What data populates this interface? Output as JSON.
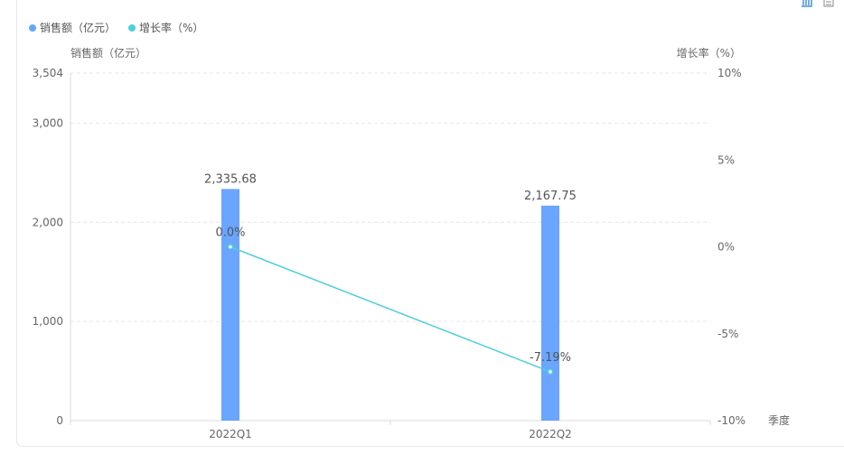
{
  "toolbar": {
    "icons": [
      "bar-chart-icon",
      "table-view-icon"
    ]
  },
  "colors": {
    "bar": "#6aa5ff",
    "line": "#4ecfdc"
  },
  "chart_data": {
    "type": "bar+line",
    "categories": [
      "2022Q1",
      "2022Q2"
    ],
    "xlabel": "季度",
    "ylabel_left": "销售额（亿元）",
    "ylabel_right": "增长率（%）",
    "yleft_lim": [
      0,
      3504
    ],
    "yleft_ticks": [
      "0",
      "1,000",
      "2,000",
      "3,000",
      "3,504"
    ],
    "yleft_tick_values": [
      0,
      1000,
      2000,
      3000,
      3504
    ],
    "yright_lim": [
      -10,
      10
    ],
    "yright_ticks": [
      "-10%",
      "-5%",
      "0%",
      "5%",
      "10%"
    ],
    "yright_tick_values": [
      -10,
      -5,
      0,
      5,
      10
    ],
    "grid": true,
    "legend_placement": "top-left",
    "series": [
      {
        "name": "销售额（亿元）",
        "type": "bar",
        "axis": "left",
        "values": [
          2335.68,
          2167.75
        ],
        "labels": [
          "2,335.68",
          "2,167.75"
        ]
      },
      {
        "name": "增长率（%）",
        "type": "line",
        "axis": "right",
        "values": [
          0.0,
          -7.19
        ],
        "labels": [
          "0.0%",
          "-7.19%"
        ]
      }
    ]
  }
}
